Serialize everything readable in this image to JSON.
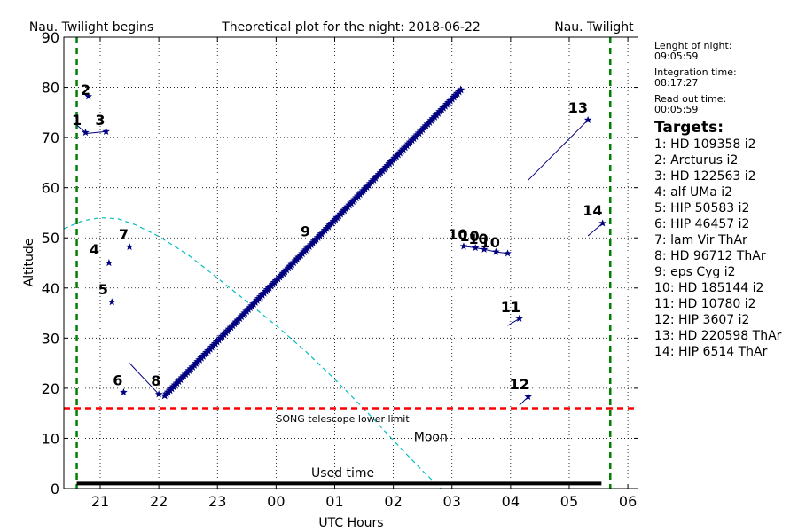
{
  "chart_data": {
    "type": "scatter",
    "title": "Theoretical plot for the night: 2018-06-22",
    "title_left": "Nau. Twilight begins",
    "title_right": "Nau. Twilight ends",
    "xlabel": "UTC Hours",
    "ylabel": "Altitude",
    "xlim": [
      20.38,
      30.18
    ],
    "ylim": [
      0,
      90
    ],
    "x_ticks": [
      {
        "value": 21,
        "label": "21"
      },
      {
        "value": 22,
        "label": "22"
      },
      {
        "value": 23,
        "label": "23"
      },
      {
        "value": 24,
        "label": "00"
      },
      {
        "value": 25,
        "label": "01"
      },
      {
        "value": 26,
        "label": "02"
      },
      {
        "value": 27,
        "label": "03"
      },
      {
        "value": 28,
        "label": "04"
      },
      {
        "value": 29,
        "label": "05"
      },
      {
        "value": 30,
        "label": "06"
      }
    ],
    "y_ticks": [
      0,
      10,
      20,
      30,
      40,
      50,
      60,
      70,
      80,
      90
    ],
    "grid": true,
    "twilight_lines": [
      20.6,
      29.7
    ],
    "lower_limit": {
      "y": 16,
      "label": "SONG telescope lower limit",
      "label_x": 24.0,
      "label_y": 13.3
    },
    "moon": {
      "label": "Moon",
      "label_x": 26.35,
      "label_y": 9.5,
      "x": [
        20.38,
        20.7,
        21.0,
        21.3,
        21.6,
        22.0,
        22.5,
        23.0,
        23.5,
        24.0,
        24.5,
        25.0,
        25.5,
        26.0,
        26.5,
        26.9
      ],
      "y": [
        51.8,
        53.4,
        54.0,
        53.8,
        52.6,
        50.3,
        46.6,
        42.0,
        37.3,
        32.5,
        27.4,
        21.8,
        15.9,
        9.6,
        3.5,
        -1
      ]
    },
    "used_time": {
      "label": "Used time",
      "x_start": 20.6,
      "x_end": 29.55,
      "y": 1,
      "label_x": 24.6,
      "label_y": 2.3
    },
    "targets_title": "Targets:",
    "targets": [
      {
        "id": "1",
        "name": "HD 109358 i2",
        "x": [
          20.6,
          20.75
        ],
        "y": [
          72.5,
          71.0
        ],
        "label_x": 20.6,
        "label_y": 72.5
      },
      {
        "id": "2",
        "name": "Arcturus i2",
        "x": [
          20.75,
          20.8
        ],
        "y": [
          78.5,
          78.2
        ],
        "label_x": 20.75,
        "label_y": 78.5
      },
      {
        "id": "3",
        "name": "HD 122563 i2",
        "x": [
          20.75,
          21.1
        ],
        "y": [
          70.8,
          71.2
        ],
        "label_x": 21.0,
        "label_y": 72.5
      },
      {
        "id": "4",
        "name": "alf UMa i2",
        "x": [
          21.15
        ],
        "y": [
          45.0
        ],
        "label_x": 20.9,
        "label_y": 46.7
      },
      {
        "id": "5",
        "name": "HIP 50583 i2",
        "x": [
          21.2
        ],
        "y": [
          37.2
        ],
        "label_x": 21.05,
        "label_y": 38.7
      },
      {
        "id": "6",
        "name": "HIP 46457 i2",
        "x": [
          21.4
        ],
        "y": [
          19.2
        ],
        "label_x": 21.3,
        "label_y": 20.6
      },
      {
        "id": "7",
        "name": "lam Vir ThAr",
        "x": [
          21.5
        ],
        "y": [
          48.2
        ],
        "label_x": 21.4,
        "label_y": 49.7
      },
      {
        "id": "8",
        "name": "HD 96712 ThAr",
        "x": [
          21.5,
          22.0
        ],
        "y": [
          25.0,
          18.8
        ],
        "label_x": 21.95,
        "label_y": 20.5
      },
      {
        "id": "9",
        "name": "eps Cyg i2",
        "x": [
          22.1,
          27.15
        ],
        "y": [
          18.5,
          79.5
        ],
        "label_x": 24.5,
        "label_y": 50.3
      },
      {
        "id": "10",
        "name": "HD 185144 i2",
        "x": [
          27.2,
          27.4,
          27.55,
          27.75,
          27.95
        ],
        "y": [
          48.3,
          48.0,
          47.7,
          47.2,
          46.9
        ],
        "label_x": 27.65,
        "label_y": 48.1
      },
      {
        "id": "11",
        "name": "HD 10780 i2",
        "x": [
          27.95,
          28.15
        ],
        "y": [
          32.5,
          33.9
        ],
        "label_x": 28.0,
        "label_y": 35.2
      },
      {
        "id": "12",
        "name": "HIP 3607 i2",
        "x": [
          28.15,
          28.3
        ],
        "y": [
          16.6,
          18.3
        ],
        "label_x": 28.15,
        "label_y": 19.8
      },
      {
        "id": "13",
        "name": "HD 220598 ThAr",
        "x": [
          28.3,
          29.32
        ],
        "y": [
          61.5,
          73.5
        ],
        "label_x": 29.15,
        "label_y": 75.0
      },
      {
        "id": "14",
        "name": "HIP 6514 ThAr",
        "x": [
          29.32,
          29.57
        ],
        "y": [
          50.4,
          52.9
        ],
        "label_x": 29.4,
        "label_y": 54.5
      }
    ],
    "extra_labels": [
      {
        "text": "10",
        "x": 27.1,
        "y": 49.7
      },
      {
        "text": "10",
        "x": 27.3,
        "y": 49.3
      },
      {
        "text": "10",
        "x": 27.45,
        "y": 48.8
      }
    ],
    "colors": {
      "target": "#000080",
      "moon": "#00bfbf",
      "limit": "#ff0000",
      "twilight": "#008000",
      "used_time": "#000000"
    }
  },
  "sidebar": {
    "night_length_label": "Lenght of night:",
    "night_length_value": "09:05:59",
    "integration_label": "Integration time:",
    "integration_value": "08:17:27",
    "readout_label": "Read out time:",
    "readout_value": "00:05:59"
  }
}
